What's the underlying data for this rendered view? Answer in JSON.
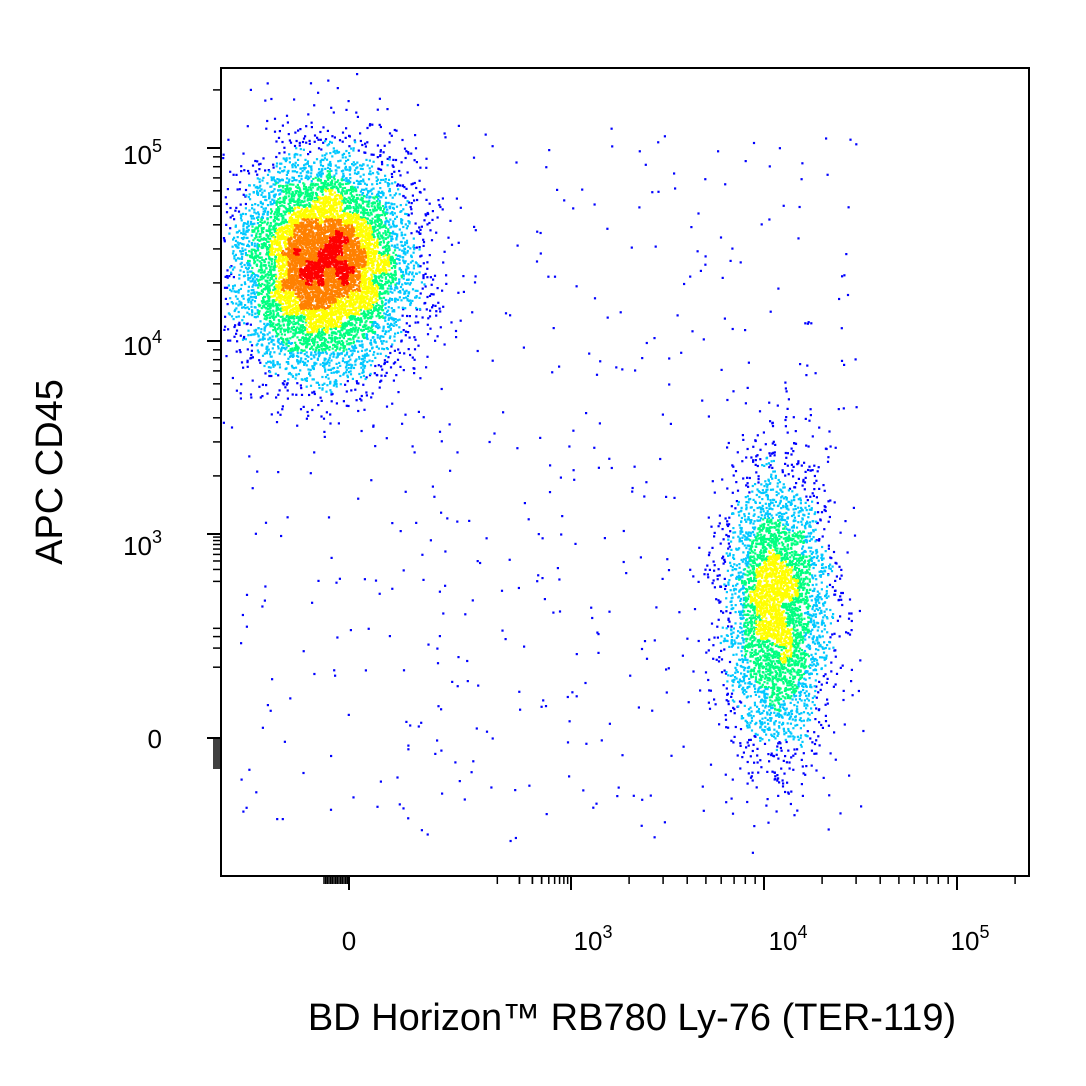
{
  "chart_data": {
    "type": "scatter",
    "subtype": "flow-cytometry-pseudocolor-density",
    "title": "",
    "xlabel": "BD Horizon™ RB780  Ly-76 (TER-119)",
    "ylabel": "APC  CD45",
    "x_scale": "biexponential",
    "y_scale": "biexponential",
    "x_ticks": [
      {
        "base": "0",
        "exp": ""
      },
      {
        "base": "10",
        "exp": "3"
      },
      {
        "base": "10",
        "exp": "4"
      },
      {
        "base": "10",
        "exp": "5"
      }
    ],
    "y_ticks": [
      {
        "base": "0",
        "exp": ""
      },
      {
        "base": "10",
        "exp": "3"
      },
      {
        "base": "10",
        "exp": "4"
      },
      {
        "base": "10",
        "exp": "5"
      }
    ],
    "grid": false,
    "legend": "none",
    "color_scale": [
      "#0000ff",
      "#00c8ff",
      "#00ff80",
      "#ffff00",
      "#ff8000",
      "#ff0000"
    ],
    "populations": [
      {
        "x_center": 0,
        "y_center": 25000,
        "relative_density": 1.0
      },
      {
        "x_center": 10000,
        "y_center": 200,
        "relative_density": 0.35
      }
    ]
  }
}
